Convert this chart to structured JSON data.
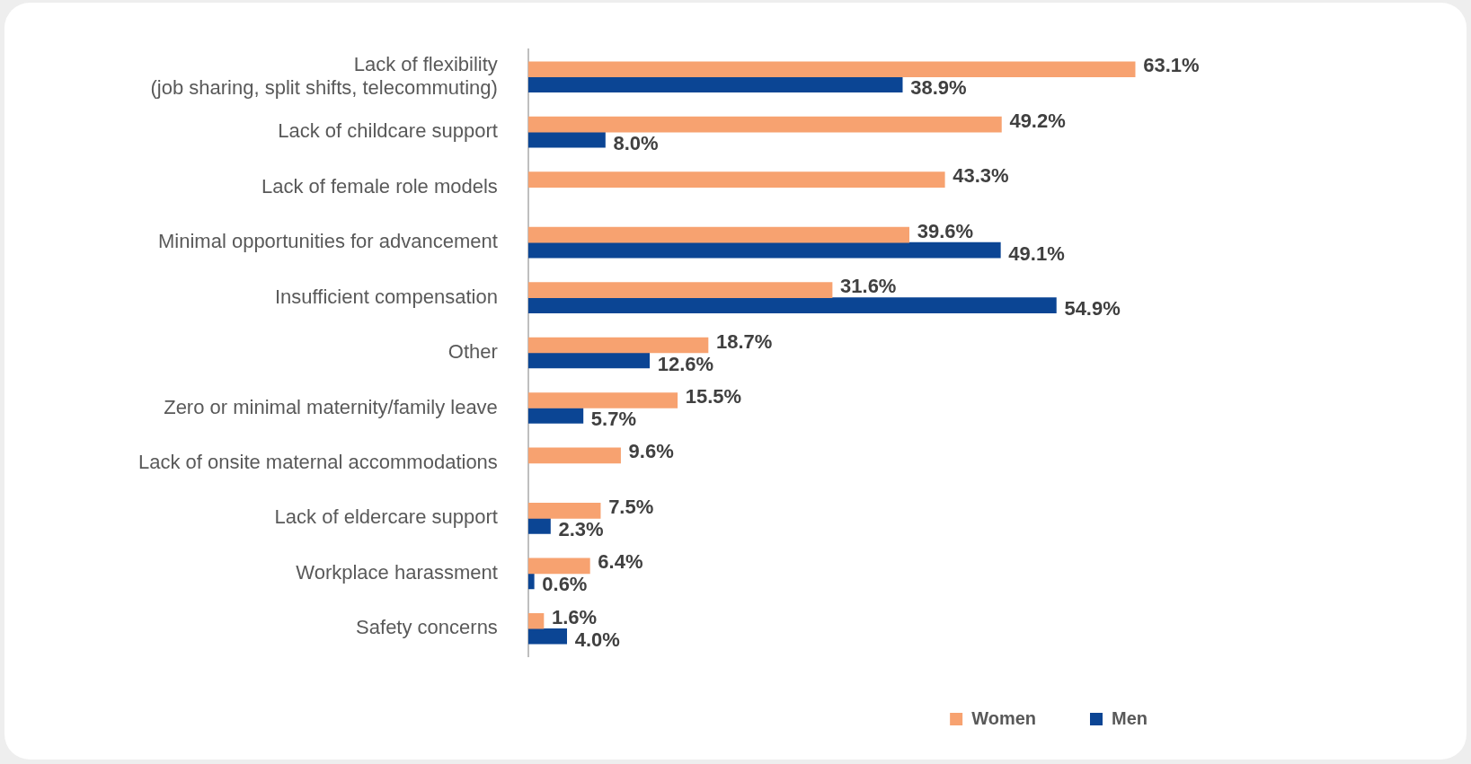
{
  "chart_data": {
    "type": "bar",
    "orientation": "horizontal",
    "categories": [
      "Lack of flexibility\n(job sharing, split shifts, telecommuting)",
      "Lack of childcare support",
      "Lack of female role models",
      "Minimal opportunities for advancement",
      "Insufficient compensation",
      "Other",
      "Zero or minimal maternity/family leave",
      "Lack of onsite maternal accommodations",
      "Lack of eldercare support",
      "Workplace harassment",
      "Safety concerns"
    ],
    "series": [
      {
        "name": "Women",
        "color": "#f7a270",
        "values": [
          63.1,
          49.2,
          43.3,
          39.6,
          31.6,
          18.7,
          15.5,
          9.6,
          7.5,
          6.4,
          1.6
        ],
        "value_labels": [
          "63.1%",
          "49.2%",
          "43.3%",
          "39.6%",
          "31.6%",
          "18.7%",
          "15.5%",
          "9.6%",
          "7.5%",
          "6.4%",
          "1.6%"
        ]
      },
      {
        "name": "Men",
        "color": "#0b4594",
        "values": [
          38.9,
          8.0,
          null,
          49.1,
          54.9,
          12.6,
          5.7,
          null,
          2.3,
          0.6,
          4.0
        ],
        "value_labels": [
          "38.9%",
          "8.0%",
          null,
          "49.1%",
          "54.9%",
          "12.6%",
          "5.7%",
          null,
          "2.3%",
          "0.6%",
          "4.0%"
        ]
      }
    ],
    "legend": "bottom right",
    "tick_labels": "y"
  }
}
